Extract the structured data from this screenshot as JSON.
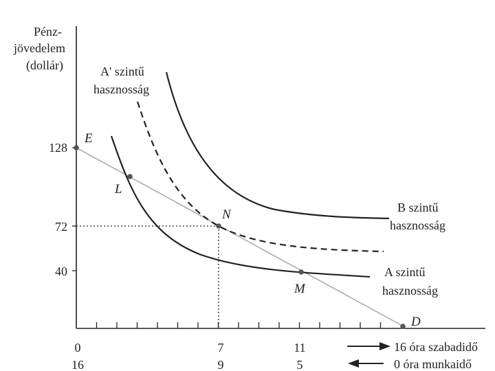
{
  "axis": {
    "y_label_lines": [
      "Pénz-",
      "jövedelem",
      "(dollár)"
    ],
    "y_ticks": [
      "128",
      "72",
      "40"
    ],
    "x_ticks_top": [
      "0",
      "7",
      "11"
    ],
    "x_ticks_bottom": [
      "16",
      "9",
      "5"
    ],
    "leisure_label": "16 óra szabadidő",
    "work_label": "0 óra munkaidő"
  },
  "points": {
    "E": "E",
    "L": "L",
    "N": "N",
    "M": "M",
    "D": "D"
  },
  "curves": {
    "a_prime_lines": [
      "A' szintű",
      "hasznosság"
    ],
    "b_lines": [
      "B szintű",
      "hasznosság"
    ],
    "a_lines": [
      "A szintű",
      "hasznosság"
    ]
  },
  "colors": {
    "budget_line": "#a8a8a8",
    "ink": "#222222"
  }
}
